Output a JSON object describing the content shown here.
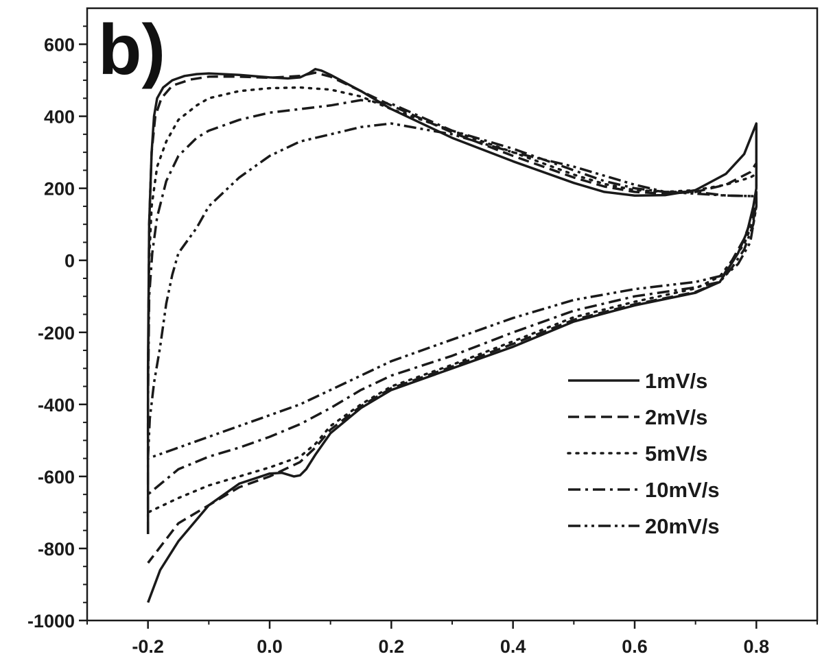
{
  "chart_data": {
    "type": "line",
    "panel_label": "b)",
    "xlim": [
      -0.3,
      0.9
    ],
    "ylim": [
      -1000,
      700
    ],
    "x_ticks": [
      -0.2,
      0.0,
      0.2,
      0.4,
      0.6,
      0.8
    ],
    "x_tick_labels": [
      "-0.2",
      "0.0",
      "0.2",
      "0.4",
      "0.6",
      "0.8"
    ],
    "y_ticks": [
      600,
      400,
      200,
      0,
      -200,
      -400,
      -600,
      -800,
      -1000
    ],
    "y_tick_labels": [
      "600",
      "400",
      "200",
      "0",
      "-200",
      "-400",
      "-600",
      "-800",
      "-1000"
    ],
    "grid": false,
    "legend_position": "bottom-right",
    "colors": {
      "line": "#1a1a1a",
      "axis": "#1a1a1a",
      "background": "#ffffff"
    },
    "series": [
      {
        "name": "1mV/s",
        "dash": "solid",
        "points": [
          [
            -0.2,
            -760
          ],
          [
            -0.2,
            -300
          ],
          [
            -0.198,
            100
          ],
          [
            -0.194,
            300
          ],
          [
            -0.19,
            400
          ],
          [
            -0.185,
            450
          ],
          [
            -0.175,
            480
          ],
          [
            -0.16,
            500
          ],
          [
            -0.14,
            512
          ],
          [
            -0.12,
            517
          ],
          [
            -0.1,
            519
          ],
          [
            -0.05,
            515
          ],
          [
            0.0,
            508
          ],
          [
            0.03,
            505
          ],
          [
            0.05,
            508
          ],
          [
            0.065,
            520
          ],
          [
            0.075,
            531
          ],
          [
            0.085,
            527
          ],
          [
            0.1,
            515
          ],
          [
            0.15,
            470
          ],
          [
            0.2,
            420
          ],
          [
            0.3,
            340
          ],
          [
            0.4,
            275
          ],
          [
            0.5,
            215
          ],
          [
            0.55,
            190
          ],
          [
            0.6,
            180
          ],
          [
            0.65,
            181
          ],
          [
            0.7,
            195
          ],
          [
            0.75,
            240
          ],
          [
            0.78,
            295
          ],
          [
            0.8,
            380
          ],
          [
            0.8,
            200
          ],
          [
            0.795,
            150
          ],
          [
            0.785,
            80
          ],
          [
            0.77,
            20
          ],
          [
            0.74,
            -60
          ],
          [
            0.7,
            -90
          ],
          [
            0.6,
            -125
          ],
          [
            0.5,
            -170
          ],
          [
            0.4,
            -240
          ],
          [
            0.3,
            -300
          ],
          [
            0.2,
            -360
          ],
          [
            0.15,
            -410
          ],
          [
            0.1,
            -480
          ],
          [
            0.075,
            -540
          ],
          [
            0.06,
            -580
          ],
          [
            0.05,
            -597
          ],
          [
            0.04,
            -600
          ],
          [
            0.02,
            -590
          ],
          [
            0.0,
            -592
          ],
          [
            -0.05,
            -620
          ],
          [
            -0.1,
            -680
          ],
          [
            -0.15,
            -780
          ],
          [
            -0.18,
            -860
          ],
          [
            -0.2,
            -950
          ]
        ]
      },
      {
        "name": "2mV/s",
        "dash": "dashed",
        "points": [
          [
            -0.2,
            -360
          ],
          [
            -0.198,
            100
          ],
          [
            -0.194,
            300
          ],
          [
            -0.188,
            400
          ],
          [
            -0.178,
            450
          ],
          [
            -0.16,
            485
          ],
          [
            -0.13,
            502
          ],
          [
            -0.1,
            510
          ],
          [
            -0.05,
            510
          ],
          [
            0.0,
            507
          ],
          [
            0.05,
            512
          ],
          [
            0.075,
            521
          ],
          [
            0.1,
            510
          ],
          [
            0.15,
            470
          ],
          [
            0.2,
            430
          ],
          [
            0.3,
            355
          ],
          [
            0.4,
            290
          ],
          [
            0.5,
            230
          ],
          [
            0.55,
            205
          ],
          [
            0.6,
            190
          ],
          [
            0.65,
            185
          ],
          [
            0.7,
            190
          ],
          [
            0.75,
            210
          ],
          [
            0.79,
            245
          ],
          [
            0.8,
            270
          ],
          [
            0.8,
            180
          ],
          [
            0.795,
            130
          ],
          [
            0.78,
            60
          ],
          [
            0.76,
            0
          ],
          [
            0.74,
            -60
          ],
          [
            0.7,
            -88
          ],
          [
            0.6,
            -122
          ],
          [
            0.5,
            -165
          ],
          [
            0.4,
            -232
          ],
          [
            0.3,
            -295
          ],
          [
            0.2,
            -355
          ],
          [
            0.15,
            -405
          ],
          [
            0.1,
            -470
          ],
          [
            0.075,
            -520
          ],
          [
            0.05,
            -560
          ],
          [
            0.0,
            -600
          ],
          [
            -0.05,
            -630
          ],
          [
            -0.1,
            -680
          ],
          [
            -0.15,
            -730
          ],
          [
            -0.2,
            -840
          ]
        ]
      },
      {
        "name": "5mV/s",
        "dash": "dotted",
        "points": [
          [
            -0.2,
            -330
          ],
          [
            -0.198,
            0
          ],
          [
            -0.194,
            150
          ],
          [
            -0.185,
            260
          ],
          [
            -0.17,
            330
          ],
          [
            -0.15,
            390
          ],
          [
            -0.12,
            430
          ],
          [
            -0.1,
            450
          ],
          [
            -0.05,
            470
          ],
          [
            0.0,
            478
          ],
          [
            0.05,
            480
          ],
          [
            0.1,
            474
          ],
          [
            0.15,
            455
          ],
          [
            0.2,
            420
          ],
          [
            0.3,
            360
          ],
          [
            0.4,
            300
          ],
          [
            0.5,
            238
          ],
          [
            0.55,
            212
          ],
          [
            0.6,
            195
          ],
          [
            0.65,
            190
          ],
          [
            0.7,
            195
          ],
          [
            0.75,
            210
          ],
          [
            0.79,
            230
          ],
          [
            0.8,
            240
          ],
          [
            0.8,
            160
          ],
          [
            0.795,
            110
          ],
          [
            0.78,
            45
          ],
          [
            0.76,
            0
          ],
          [
            0.74,
            -45
          ],
          [
            0.7,
            -78
          ],
          [
            0.6,
            -115
          ],
          [
            0.5,
            -158
          ],
          [
            0.4,
            -225
          ],
          [
            0.3,
            -290
          ],
          [
            0.2,
            -350
          ],
          [
            0.15,
            -400
          ],
          [
            0.1,
            -460
          ],
          [
            0.075,
            -510
          ],
          [
            0.05,
            -545
          ],
          [
            0.0,
            -575
          ],
          [
            -0.05,
            -600
          ],
          [
            -0.1,
            -625
          ],
          [
            -0.15,
            -660
          ],
          [
            -0.2,
            -700
          ]
        ]
      },
      {
        "name": "10mV/s",
        "dash": "dashdot",
        "points": [
          [
            -0.2,
            -760
          ],
          [
            -0.2,
            -400
          ],
          [
            -0.198,
            -100
          ],
          [
            -0.193,
            20
          ],
          [
            -0.185,
            120
          ],
          [
            -0.17,
            220
          ],
          [
            -0.15,
            290
          ],
          [
            -0.12,
            340
          ],
          [
            -0.1,
            360
          ],
          [
            -0.05,
            390
          ],
          [
            0.0,
            410
          ],
          [
            0.05,
            420
          ],
          [
            0.1,
            430
          ],
          [
            0.15,
            445
          ],
          [
            0.2,
            435
          ],
          [
            0.3,
            360
          ],
          [
            0.4,
            310
          ],
          [
            0.5,
            250
          ],
          [
            0.55,
            220
          ],
          [
            0.6,
            200
          ],
          [
            0.65,
            190
          ],
          [
            0.7,
            190
          ],
          [
            0.75,
            180
          ],
          [
            0.8,
            178
          ],
          [
            0.8,
            150
          ],
          [
            0.795,
            100
          ],
          [
            0.78,
            30
          ],
          [
            0.76,
            -20
          ],
          [
            0.74,
            -60
          ],
          [
            0.7,
            -75
          ],
          [
            0.6,
            -100
          ],
          [
            0.5,
            -140
          ],
          [
            0.4,
            -200
          ],
          [
            0.3,
            -265
          ],
          [
            0.2,
            -320
          ],
          [
            0.15,
            -360
          ],
          [
            0.1,
            -410
          ],
          [
            0.05,
            -455
          ],
          [
            0.0,
            -490
          ],
          [
            -0.05,
            -520
          ],
          [
            -0.1,
            -545
          ],
          [
            -0.15,
            -580
          ],
          [
            -0.2,
            -650
          ]
        ]
      },
      {
        "name": "20mV/s",
        "dash": "dashdotdot",
        "points": [
          [
            -0.2,
            -550
          ],
          [
            -0.197,
            -440
          ],
          [
            -0.19,
            -340
          ],
          [
            -0.18,
            -240
          ],
          [
            -0.17,
            -120
          ],
          [
            -0.16,
            -40
          ],
          [
            -0.15,
            20
          ],
          [
            -0.12,
            90
          ],
          [
            -0.1,
            150
          ],
          [
            -0.05,
            230
          ],
          [
            0.0,
            290
          ],
          [
            0.05,
            330
          ],
          [
            0.1,
            350
          ],
          [
            0.15,
            370
          ],
          [
            0.2,
            380
          ],
          [
            0.3,
            350
          ],
          [
            0.4,
            300
          ],
          [
            0.5,
            260
          ],
          [
            0.6,
            210
          ],
          [
            0.65,
            190
          ],
          [
            0.7,
            185
          ],
          [
            0.75,
            180
          ],
          [
            0.8,
            178
          ],
          [
            0.8,
            150
          ],
          [
            0.79,
            50
          ],
          [
            0.77,
            -10
          ],
          [
            0.75,
            -40
          ],
          [
            0.7,
            -60
          ],
          [
            0.6,
            -80
          ],
          [
            0.5,
            -110
          ],
          [
            0.4,
            -160
          ],
          [
            0.3,
            -220
          ],
          [
            0.2,
            -280
          ],
          [
            0.15,
            -320
          ],
          [
            0.1,
            -360
          ],
          [
            0.05,
            -400
          ],
          [
            0.0,
            -430
          ],
          [
            -0.05,
            -460
          ],
          [
            -0.1,
            -490
          ],
          [
            -0.15,
            -520
          ],
          [
            -0.2,
            -550
          ]
        ]
      }
    ]
  }
}
